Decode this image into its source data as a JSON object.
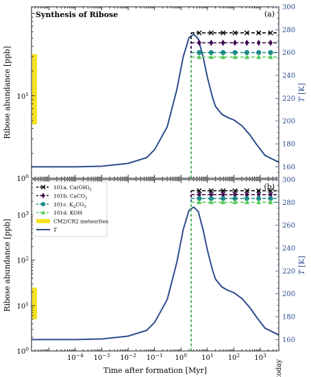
{
  "chart_data": [
    {
      "type": "line",
      "panel_label": "(a)",
      "title": "Synthesis of Ribose",
      "xlabel": "",
      "ylabel": "Ribose abundance [ppb]",
      "y2label": "T [K]",
      "xscale": "log",
      "yscale": "log",
      "xlim": [
        2.2e-06,
        5000
      ],
      "ylim": [
        1,
        120
      ],
      "y2lim": [
        150,
        300
      ],
      "x_ticks": [],
      "y_ticks": [
        "10^0",
        "10^1"
      ],
      "y2_ticks": [
        "160",
        "180",
        "200",
        "220",
        "240",
        "260",
        "280",
        "300"
      ],
      "meteorite_band": {
        "name": "CM2/CR2 meteorites",
        "ymin": 4.5,
        "ymax": 32
      },
      "onset_x": 2.4,
      "series": [
        {
          "key": "101a",
          "name": "101a. Ca(OH)2",
          "color": "#000000",
          "marker": "x",
          "y": 58
        },
        {
          "key": "101b",
          "name": "101b. CaCO3",
          "color": "#3d0a4f",
          "marker": "diamond",
          "y": 44
        },
        {
          "key": "101c",
          "name": "101c. K2CO3",
          "color": "#1f8a8a",
          "marker": "circle",
          "y": 33.5
        },
        {
          "key": "101d",
          "name": "101d. KOH",
          "color": "#5ec962",
          "marker": "triangle",
          "y": 29.5
        }
      ],
      "temperature": {
        "name": "T",
        "color": "#2b4a8b",
        "points": [
          [
            2.2e-06,
            160
          ],
          [
            0.0001,
            160
          ],
          [
            0.001,
            160.5
          ],
          [
            0.01,
            163
          ],
          [
            0.05,
            168
          ],
          [
            0.1,
            175
          ],
          [
            0.3,
            195
          ],
          [
            0.7,
            228
          ],
          [
            1.2,
            256
          ],
          [
            2,
            273
          ],
          [
            3,
            276
          ],
          [
            4.5,
            272
          ],
          [
            7,
            255
          ],
          [
            10,
            238
          ],
          [
            15,
            222
          ],
          [
            20,
            213
          ],
          [
            35,
            206
          ],
          [
            60,
            203
          ],
          [
            100,
            201
          ],
          [
            200,
            196
          ],
          [
            400,
            188
          ],
          [
            700,
            180
          ],
          [
            1500,
            170
          ],
          [
            5000,
            164
          ]
        ]
      }
    },
    {
      "type": "line",
      "panel_label": "(b)",
      "title": "",
      "xlabel": "Time after formation [Myr]",
      "ylabel": "Ribose abundance [ppb]",
      "y2label": "T [K]",
      "xscale": "log",
      "yscale": "log",
      "xlim": [
        2.2e-06,
        5000
      ],
      "ylim": [
        1,
        6000
      ],
      "y2lim": [
        150,
        300
      ],
      "x_ticks": [
        "10^-4",
        "10^-3",
        "10^-2",
        "10^-1",
        "10^0",
        "10^1",
        "10^2",
        "10^3"
      ],
      "x_extra_tick": "today",
      "y_ticks": [
        "10^0",
        "10^1",
        "10^2",
        "10^3"
      ],
      "y2_ticks": [
        "160",
        "180",
        "200",
        "220",
        "240",
        "260",
        "280",
        "300"
      ],
      "meteorite_band": {
        "name": "CM2/CR2 meteorites",
        "ymin": 5,
        "ymax": 25
      },
      "onset_x": 2.4,
      "series": [
        {
          "key": "101a",
          "name": "101a. Ca(OH)2",
          "color": "#000000",
          "marker": "x",
          "y": 3400
        },
        {
          "key": "101b",
          "name": "101b. CaCO3",
          "color": "#3d0a4f",
          "marker": "diamond",
          "y": 2800
        },
        {
          "key": "101c",
          "name": "101c. K2CO3",
          "color": "#1f8a8a",
          "marker": "circle",
          "y": 2300
        },
        {
          "key": "101d",
          "name": "101d. KOH",
          "color": "#5ec962",
          "marker": "triangle",
          "y": 1900
        }
      ],
      "temperature": {
        "name": "T",
        "color": "#2b4a8b",
        "points": [
          [
            2.2e-06,
            160
          ],
          [
            0.0001,
            160
          ],
          [
            0.001,
            160.5
          ],
          [
            0.01,
            163
          ],
          [
            0.05,
            168
          ],
          [
            0.1,
            175
          ],
          [
            0.3,
            195
          ],
          [
            0.7,
            228
          ],
          [
            1.2,
            256
          ],
          [
            2,
            273
          ],
          [
            3,
            276
          ],
          [
            4.5,
            272
          ],
          [
            7,
            255
          ],
          [
            10,
            238
          ],
          [
            15,
            222
          ],
          [
            20,
            213
          ],
          [
            35,
            206
          ],
          [
            60,
            203
          ],
          [
            100,
            201
          ],
          [
            200,
            196
          ],
          [
            400,
            188
          ],
          [
            700,
            180
          ],
          [
            1500,
            170
          ],
          [
            5000,
            164
          ]
        ]
      }
    }
  ],
  "legend": {
    "items": [
      {
        "key": "101a",
        "label": "101a. Ca(OH)",
        "sub": "2",
        "marker": "x",
        "color": "#000000"
      },
      {
        "key": "101b",
        "label": "101b. CaCO",
        "sub": "3",
        "marker": "diamond",
        "color": "#3d0a4f"
      },
      {
        "key": "101c",
        "label": "101c. K",
        "sub": "2",
        "label2": "CO",
        "sub2": "3",
        "marker": "circle",
        "color": "#1f8a8a"
      },
      {
        "key": "101d",
        "label": "101d. KOH",
        "marker": "triangle",
        "color": "#5ec962"
      },
      {
        "key": "band",
        "label": "CM2/CR2 meteorites",
        "marker": "band",
        "color": "#f5e11e"
      },
      {
        "key": "T",
        "label": "T",
        "marker": "line",
        "color": "#2b4a8b",
        "italic": true
      }
    ]
  },
  "colors": {
    "band": "#f5e11e",
    "temperature": "#2b4a8b",
    "axis": "#000000"
  }
}
